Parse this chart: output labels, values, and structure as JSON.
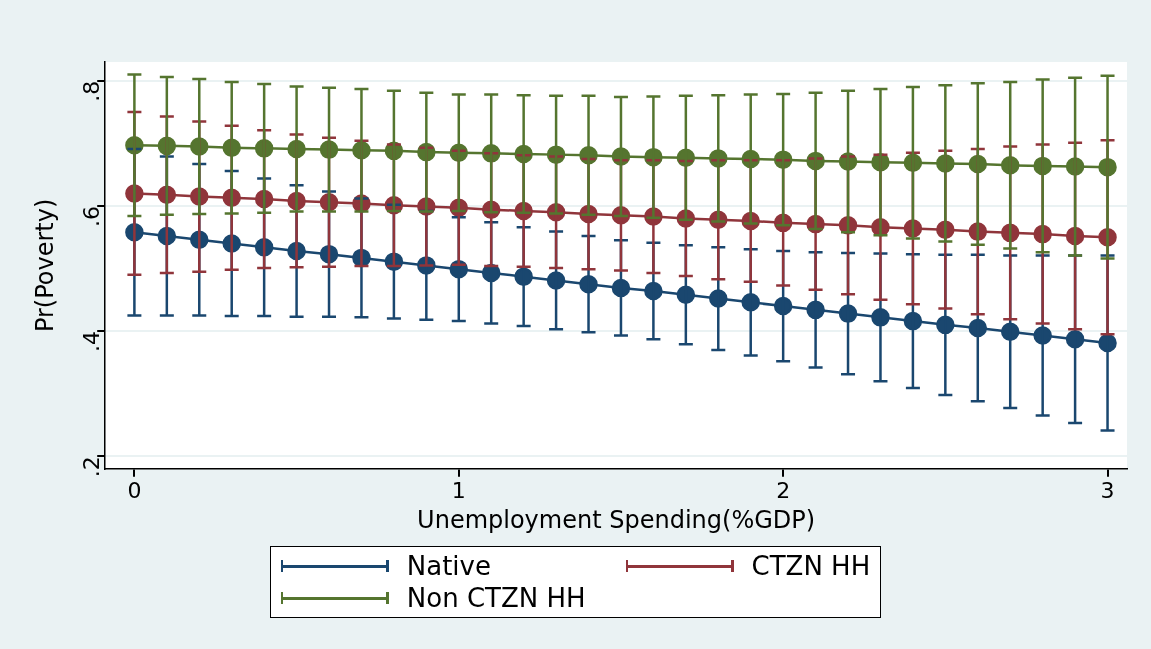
{
  "chart_data": {
    "type": "line",
    "xlabel": "Unemployment Spending(%GDP)",
    "ylabel": "Pr(Poverty)",
    "x": [
      0,
      0.1,
      0.2,
      0.3,
      0.4,
      0.5,
      0.6,
      0.7,
      0.8,
      0.9,
      1,
      1.1,
      1.2,
      1.3,
      1.4,
      1.5,
      1.6,
      1.7,
      1.8,
      1.9,
      2,
      2.1,
      2.2,
      2.3,
      2.4,
      2.5,
      2.6,
      2.7,
      2.8,
      2.9,
      3
    ],
    "series": [
      {
        "name": "Native",
        "color": "#1a476f",
        "values": [
          0.558,
          0.552,
          0.546,
          0.54,
          0.534,
          0.528,
          0.523,
          0.517,
          0.511,
          0.505,
          0.499,
          0.493,
          0.487,
          0.481,
          0.475,
          0.469,
          0.464,
          0.458,
          0.452,
          0.446,
          0.44,
          0.434,
          0.428,
          0.422,
          0.416,
          0.41,
          0.405,
          0.399,
          0.393,
          0.387,
          0.381
        ],
        "errors": [
          0.133,
          0.127,
          0.121,
          0.116,
          0.11,
          0.105,
          0.1,
          0.095,
          0.091,
          0.087,
          0.083,
          0.081,
          0.079,
          0.078,
          0.077,
          0.076,
          0.077,
          0.079,
          0.082,
          0.085,
          0.088,
          0.092,
          0.097,
          0.102,
          0.107,
          0.112,
          0.117,
          0.122,
          0.128,
          0.134,
          0.14
        ]
      },
      {
        "name": "CTZN HH",
        "color": "#90353b",
        "values": [
          0.62,
          0.618,
          0.615,
          0.613,
          0.611,
          0.608,
          0.606,
          0.604,
          0.601,
          0.599,
          0.597,
          0.594,
          0.592,
          0.59,
          0.587,
          0.585,
          0.583,
          0.58,
          0.578,
          0.576,
          0.573,
          0.571,
          0.569,
          0.566,
          0.564,
          0.562,
          0.559,
          0.557,
          0.555,
          0.552,
          0.55
        ],
        "errors": [
          0.13,
          0.125,
          0.12,
          0.115,
          0.11,
          0.106,
          0.103,
          0.1,
          0.097,
          0.094,
          0.091,
          0.09,
          0.089,
          0.089,
          0.088,
          0.088,
          0.09,
          0.092,
          0.095,
          0.097,
          0.1,
          0.105,
          0.11,
          0.116,
          0.121,
          0.126,
          0.132,
          0.138,
          0.143,
          0.149,
          0.155
        ]
      },
      {
        "name": "Non CTZN HH",
        "color": "#55752f",
        "values": [
          0.697,
          0.696,
          0.695,
          0.693,
          0.692,
          0.691,
          0.69,
          0.689,
          0.688,
          0.686,
          0.685,
          0.684,
          0.683,
          0.682,
          0.681,
          0.679,
          0.678,
          0.677,
          0.676,
          0.675,
          0.674,
          0.672,
          0.671,
          0.67,
          0.669,
          0.668,
          0.667,
          0.665,
          0.664,
          0.663,
          0.662
        ],
        "errors": [
          0.113,
          0.11,
          0.108,
          0.105,
          0.103,
          0.1,
          0.099,
          0.098,
          0.096,
          0.095,
          0.093,
          0.094,
          0.094,
          0.094,
          0.095,
          0.095,
          0.097,
          0.099,
          0.101,
          0.103,
          0.105,
          0.109,
          0.113,
          0.117,
          0.121,
          0.125,
          0.129,
          0.133,
          0.138,
          0.142,
          0.146
        ]
      }
    ],
    "xlim": [
      -0.09,
      3.06
    ],
    "xticks": [
      0,
      1,
      2,
      3
    ],
    "ylim": [
      0.18,
      0.83
    ],
    "yticks": [
      {
        "value": 0.2,
        "label": ".2"
      },
      {
        "value": 0.4,
        "label": ".4"
      },
      {
        "value": 0.6,
        "label": ".6"
      },
      {
        "value": 0.8,
        "label": ".8"
      }
    ],
    "grid": "y",
    "legend": "bottom",
    "marker": "circle",
    "line_style": "solid"
  }
}
